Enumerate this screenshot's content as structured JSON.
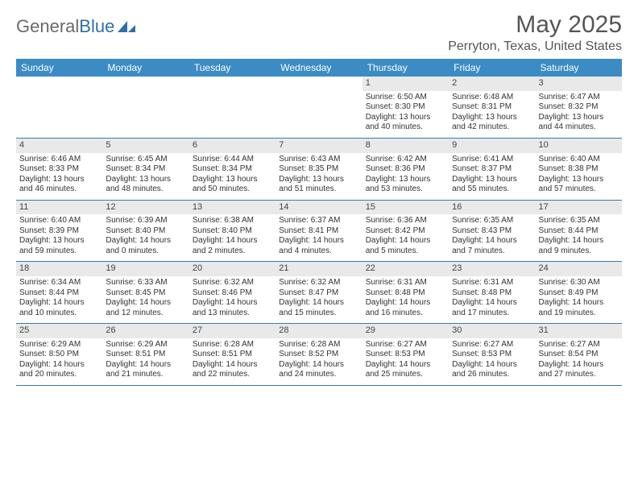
{
  "logo": {
    "text_gray": "General",
    "text_blue": "Blue"
  },
  "title": "May 2025",
  "location": "Perryton, Texas, United States",
  "colors": {
    "header_bg": "#3b8bc4",
    "header_text": "#ffffff",
    "week_border": "#3b7aa8",
    "daynum_bg": "#e9e9e9",
    "body_text": "#333333",
    "title_text": "#555555",
    "logo_gray": "#6a6a6a",
    "logo_blue": "#2f6fa7",
    "page_bg": "#ffffff"
  },
  "typography": {
    "month_title_fontsize": 30,
    "location_fontsize": 16,
    "dayheader_fontsize": 12,
    "daynum_fontsize": 11,
    "detail_fontsize": 10,
    "logo_fontsize": 22
  },
  "day_names": [
    "Sunday",
    "Monday",
    "Tuesday",
    "Wednesday",
    "Thursday",
    "Friday",
    "Saturday"
  ],
  "weeks": [
    [
      {
        "num": "",
        "sunrise": "",
        "sunset": "",
        "daylight_a": "",
        "daylight_b": ""
      },
      {
        "num": "",
        "sunrise": "",
        "sunset": "",
        "daylight_a": "",
        "daylight_b": ""
      },
      {
        "num": "",
        "sunrise": "",
        "sunset": "",
        "daylight_a": "",
        "daylight_b": ""
      },
      {
        "num": "",
        "sunrise": "",
        "sunset": "",
        "daylight_a": "",
        "daylight_b": ""
      },
      {
        "num": "1",
        "sunrise": "Sunrise: 6:50 AM",
        "sunset": "Sunset: 8:30 PM",
        "daylight_a": "Daylight: 13 hours",
        "daylight_b": "and 40 minutes."
      },
      {
        "num": "2",
        "sunrise": "Sunrise: 6:48 AM",
        "sunset": "Sunset: 8:31 PM",
        "daylight_a": "Daylight: 13 hours",
        "daylight_b": "and 42 minutes."
      },
      {
        "num": "3",
        "sunrise": "Sunrise: 6:47 AM",
        "sunset": "Sunset: 8:32 PM",
        "daylight_a": "Daylight: 13 hours",
        "daylight_b": "and 44 minutes."
      }
    ],
    [
      {
        "num": "4",
        "sunrise": "Sunrise: 6:46 AM",
        "sunset": "Sunset: 8:33 PM",
        "daylight_a": "Daylight: 13 hours",
        "daylight_b": "and 46 minutes."
      },
      {
        "num": "5",
        "sunrise": "Sunrise: 6:45 AM",
        "sunset": "Sunset: 8:34 PM",
        "daylight_a": "Daylight: 13 hours",
        "daylight_b": "and 48 minutes."
      },
      {
        "num": "6",
        "sunrise": "Sunrise: 6:44 AM",
        "sunset": "Sunset: 8:34 PM",
        "daylight_a": "Daylight: 13 hours",
        "daylight_b": "and 50 minutes."
      },
      {
        "num": "7",
        "sunrise": "Sunrise: 6:43 AM",
        "sunset": "Sunset: 8:35 PM",
        "daylight_a": "Daylight: 13 hours",
        "daylight_b": "and 51 minutes."
      },
      {
        "num": "8",
        "sunrise": "Sunrise: 6:42 AM",
        "sunset": "Sunset: 8:36 PM",
        "daylight_a": "Daylight: 13 hours",
        "daylight_b": "and 53 minutes."
      },
      {
        "num": "9",
        "sunrise": "Sunrise: 6:41 AM",
        "sunset": "Sunset: 8:37 PM",
        "daylight_a": "Daylight: 13 hours",
        "daylight_b": "and 55 minutes."
      },
      {
        "num": "10",
        "sunrise": "Sunrise: 6:40 AM",
        "sunset": "Sunset: 8:38 PM",
        "daylight_a": "Daylight: 13 hours",
        "daylight_b": "and 57 minutes."
      }
    ],
    [
      {
        "num": "11",
        "sunrise": "Sunrise: 6:40 AM",
        "sunset": "Sunset: 8:39 PM",
        "daylight_a": "Daylight: 13 hours",
        "daylight_b": "and 59 minutes."
      },
      {
        "num": "12",
        "sunrise": "Sunrise: 6:39 AM",
        "sunset": "Sunset: 8:40 PM",
        "daylight_a": "Daylight: 14 hours",
        "daylight_b": "and 0 minutes."
      },
      {
        "num": "13",
        "sunrise": "Sunrise: 6:38 AM",
        "sunset": "Sunset: 8:40 PM",
        "daylight_a": "Daylight: 14 hours",
        "daylight_b": "and 2 minutes."
      },
      {
        "num": "14",
        "sunrise": "Sunrise: 6:37 AM",
        "sunset": "Sunset: 8:41 PM",
        "daylight_a": "Daylight: 14 hours",
        "daylight_b": "and 4 minutes."
      },
      {
        "num": "15",
        "sunrise": "Sunrise: 6:36 AM",
        "sunset": "Sunset: 8:42 PM",
        "daylight_a": "Daylight: 14 hours",
        "daylight_b": "and 5 minutes."
      },
      {
        "num": "16",
        "sunrise": "Sunrise: 6:35 AM",
        "sunset": "Sunset: 8:43 PM",
        "daylight_a": "Daylight: 14 hours",
        "daylight_b": "and 7 minutes."
      },
      {
        "num": "17",
        "sunrise": "Sunrise: 6:35 AM",
        "sunset": "Sunset: 8:44 PM",
        "daylight_a": "Daylight: 14 hours",
        "daylight_b": "and 9 minutes."
      }
    ],
    [
      {
        "num": "18",
        "sunrise": "Sunrise: 6:34 AM",
        "sunset": "Sunset: 8:44 PM",
        "daylight_a": "Daylight: 14 hours",
        "daylight_b": "and 10 minutes."
      },
      {
        "num": "19",
        "sunrise": "Sunrise: 6:33 AM",
        "sunset": "Sunset: 8:45 PM",
        "daylight_a": "Daylight: 14 hours",
        "daylight_b": "and 12 minutes."
      },
      {
        "num": "20",
        "sunrise": "Sunrise: 6:32 AM",
        "sunset": "Sunset: 8:46 PM",
        "daylight_a": "Daylight: 14 hours",
        "daylight_b": "and 13 minutes."
      },
      {
        "num": "21",
        "sunrise": "Sunrise: 6:32 AM",
        "sunset": "Sunset: 8:47 PM",
        "daylight_a": "Daylight: 14 hours",
        "daylight_b": "and 15 minutes."
      },
      {
        "num": "22",
        "sunrise": "Sunrise: 6:31 AM",
        "sunset": "Sunset: 8:48 PM",
        "daylight_a": "Daylight: 14 hours",
        "daylight_b": "and 16 minutes."
      },
      {
        "num": "23",
        "sunrise": "Sunrise: 6:31 AM",
        "sunset": "Sunset: 8:48 PM",
        "daylight_a": "Daylight: 14 hours",
        "daylight_b": "and 17 minutes."
      },
      {
        "num": "24",
        "sunrise": "Sunrise: 6:30 AM",
        "sunset": "Sunset: 8:49 PM",
        "daylight_a": "Daylight: 14 hours",
        "daylight_b": "and 19 minutes."
      }
    ],
    [
      {
        "num": "25",
        "sunrise": "Sunrise: 6:29 AM",
        "sunset": "Sunset: 8:50 PM",
        "daylight_a": "Daylight: 14 hours",
        "daylight_b": "and 20 minutes."
      },
      {
        "num": "26",
        "sunrise": "Sunrise: 6:29 AM",
        "sunset": "Sunset: 8:51 PM",
        "daylight_a": "Daylight: 14 hours",
        "daylight_b": "and 21 minutes."
      },
      {
        "num": "27",
        "sunrise": "Sunrise: 6:28 AM",
        "sunset": "Sunset: 8:51 PM",
        "daylight_a": "Daylight: 14 hours",
        "daylight_b": "and 22 minutes."
      },
      {
        "num": "28",
        "sunrise": "Sunrise: 6:28 AM",
        "sunset": "Sunset: 8:52 PM",
        "daylight_a": "Daylight: 14 hours",
        "daylight_b": "and 24 minutes."
      },
      {
        "num": "29",
        "sunrise": "Sunrise: 6:27 AM",
        "sunset": "Sunset: 8:53 PM",
        "daylight_a": "Daylight: 14 hours",
        "daylight_b": "and 25 minutes."
      },
      {
        "num": "30",
        "sunrise": "Sunrise: 6:27 AM",
        "sunset": "Sunset: 8:53 PM",
        "daylight_a": "Daylight: 14 hours",
        "daylight_b": "and 26 minutes."
      },
      {
        "num": "31",
        "sunrise": "Sunrise: 6:27 AM",
        "sunset": "Sunset: 8:54 PM",
        "daylight_a": "Daylight: 14 hours",
        "daylight_b": "and 27 minutes."
      }
    ]
  ]
}
